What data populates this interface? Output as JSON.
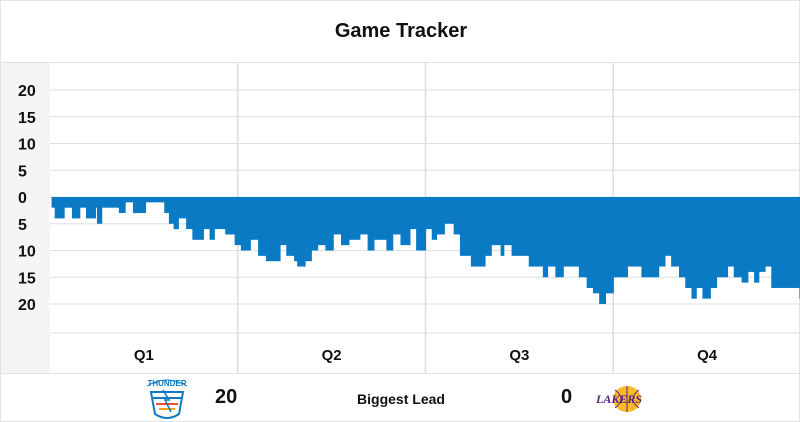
{
  "header": {
    "title": "Game Tracker"
  },
  "footer": {
    "home_score": "20",
    "lead_label": "Biggest Lead",
    "away_score": "0",
    "home_logo_icon": "thunder-logo-icon",
    "away_logo_icon": "lakers-logo-icon",
    "home_logo_text": "THUNDER",
    "away_logo_text": "LAKERS"
  },
  "colors": {
    "fill": "#0a7ac4",
    "grid": "#dedede",
    "axis_panel": "#f5f5f5"
  },
  "chart_data": {
    "type": "area",
    "title": "Game Tracker",
    "y_tick_labels": [
      "20",
      "15",
      "10",
      "5",
      "0",
      "5",
      "10",
      "15",
      "20"
    ],
    "y_ticks": [
      20,
      15,
      10,
      5,
      0,
      -5,
      -10,
      -15,
      -20
    ],
    "ylim": [
      -25,
      25
    ],
    "x_unit": "game minute",
    "xlim": [
      0,
      48
    ],
    "quarter_labels": [
      "Q1",
      "Q2",
      "Q3",
      "Q4"
    ],
    "grid": true,
    "series": [
      {
        "points": [
          [
            0.0,
            0
          ],
          [
            0.1,
            -2
          ],
          [
            0.3,
            -4
          ],
          [
            0.9,
            -2
          ],
          [
            1.4,
            -4
          ],
          [
            1.9,
            -2
          ],
          [
            2.3,
            -4
          ],
          [
            2.9,
            -2
          ],
          [
            3.0,
            -5
          ],
          [
            3.3,
            -2
          ],
          [
            3.9,
            -2
          ],
          [
            4.4,
            -3
          ],
          [
            4.8,
            -1
          ],
          [
            5.3,
            -3
          ],
          [
            5.5,
            -3
          ],
          [
            6.1,
            -1
          ],
          [
            6.7,
            -1
          ],
          [
            7.3,
            -3
          ],
          [
            7.6,
            -5
          ],
          [
            7.9,
            -6
          ],
          [
            8.2,
            -4
          ],
          [
            8.7,
            -6
          ],
          [
            9.1,
            -8
          ],
          [
            9.8,
            -6
          ],
          [
            10.2,
            -8
          ],
          [
            10.5,
            -6
          ],
          [
            11.2,
            -7
          ],
          [
            11.8,
            -9
          ],
          [
            12.2,
            -10
          ],
          [
            12.8,
            -8
          ],
          [
            13.3,
            -11
          ],
          [
            13.8,
            -12
          ],
          [
            14.7,
            -9
          ],
          [
            15.1,
            -11
          ],
          [
            15.6,
            -12
          ],
          [
            15.8,
            -13
          ],
          [
            16.3,
            -12
          ],
          [
            16.7,
            -10
          ],
          [
            17.1,
            -9
          ],
          [
            17.6,
            -10
          ],
          [
            18.1,
            -7
          ],
          [
            18.6,
            -9
          ],
          [
            19.1,
            -8
          ],
          [
            19.8,
            -7
          ],
          [
            20.3,
            -10
          ],
          [
            20.7,
            -8
          ],
          [
            21.2,
            -8
          ],
          [
            21.5,
            -10
          ],
          [
            21.9,
            -7
          ],
          [
            22.4,
            -9
          ],
          [
            23.0,
            -6
          ],
          [
            23.4,
            -10
          ],
          [
            24.0,
            -6
          ],
          [
            24.4,
            -8
          ],
          [
            24.7,
            -7
          ],
          [
            25.2,
            -5
          ],
          [
            25.8,
            -7
          ],
          [
            26.2,
            -11
          ],
          [
            26.9,
            -13
          ],
          [
            27.8,
            -11
          ],
          [
            28.2,
            -9
          ],
          [
            28.8,
            -11
          ],
          [
            29.0,
            -9
          ],
          [
            29.5,
            -11
          ],
          [
            30.0,
            -11
          ],
          [
            30.6,
            -13
          ],
          [
            31.5,
            -15
          ],
          [
            31.8,
            -13
          ],
          [
            32.3,
            -15
          ],
          [
            32.8,
            -13
          ],
          [
            33.2,
            -13
          ],
          [
            33.8,
            -15
          ],
          [
            34.3,
            -17
          ],
          [
            34.7,
            -18
          ],
          [
            35.1,
            -20
          ],
          [
            35.5,
            -18
          ],
          [
            36.0,
            -15
          ],
          [
            36.9,
            -13
          ],
          [
            37.3,
            -13
          ],
          [
            37.8,
            -15
          ],
          [
            38.3,
            -15
          ],
          [
            38.9,
            -13
          ],
          [
            39.3,
            -11
          ],
          [
            39.7,
            -13
          ],
          [
            40.2,
            -15
          ],
          [
            40.6,
            -17
          ],
          [
            41.0,
            -19
          ],
          [
            41.3,
            -17
          ],
          [
            41.7,
            -19
          ],
          [
            42.2,
            -17
          ],
          [
            42.6,
            -15
          ],
          [
            43.3,
            -13
          ],
          [
            43.7,
            -15
          ],
          [
            44.2,
            -16
          ],
          [
            44.6,
            -14
          ],
          [
            45.0,
            -16
          ],
          [
            45.3,
            -14
          ],
          [
            45.7,
            -13
          ],
          [
            46.1,
            -17
          ],
          [
            46.6,
            -17
          ],
          [
            47.3,
            -17
          ],
          [
            47.9,
            -19
          ],
          [
            48.0,
            -19
          ]
        ]
      }
    ]
  }
}
